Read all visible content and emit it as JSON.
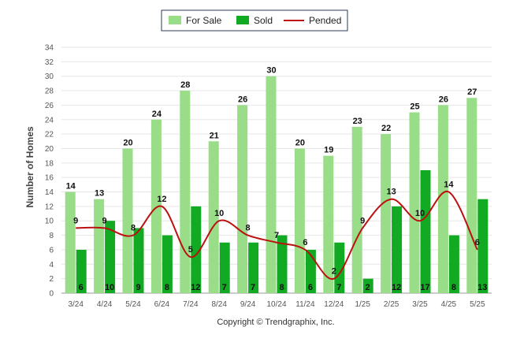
{
  "chart_data": {
    "type": "bar",
    "categories": [
      "3/24",
      "4/24",
      "5/24",
      "6/24",
      "7/24",
      "8/24",
      "9/24",
      "10/24",
      "11/24",
      "12/24",
      "1/25",
      "2/25",
      "3/25",
      "4/25",
      "5/25"
    ],
    "series": [
      {
        "name": "For Sale",
        "type": "bar",
        "color": "#99dd88",
        "values": [
          14,
          13,
          20,
          24,
          28,
          21,
          26,
          30,
          20,
          19,
          23,
          22,
          25,
          26,
          27
        ]
      },
      {
        "name": "Sold",
        "type": "bar",
        "color": "#11aa22",
        "values": [
          6,
          10,
          9,
          8,
          12,
          7,
          7,
          8,
          6,
          7,
          2,
          12,
          17,
          8,
          13
        ]
      },
      {
        "name": "Pended",
        "type": "line",
        "color": "#bb1111",
        "values": [
          9,
          9,
          8,
          12,
          5,
          10,
          8,
          7,
          6,
          2,
          9,
          13,
          10,
          14,
          6
        ]
      }
    ],
    "ylabel": "Number of Homes",
    "xlabel": "",
    "ylim": [
      0,
      34
    ],
    "yticks": [
      0,
      2,
      4,
      6,
      8,
      10,
      12,
      14,
      16,
      18,
      20,
      22,
      24,
      26,
      28,
      30,
      32,
      34
    ],
    "grid": true,
    "legend": "top-center"
  },
  "footer": {
    "copyright": "Copyright © Trendgraphix, Inc."
  }
}
